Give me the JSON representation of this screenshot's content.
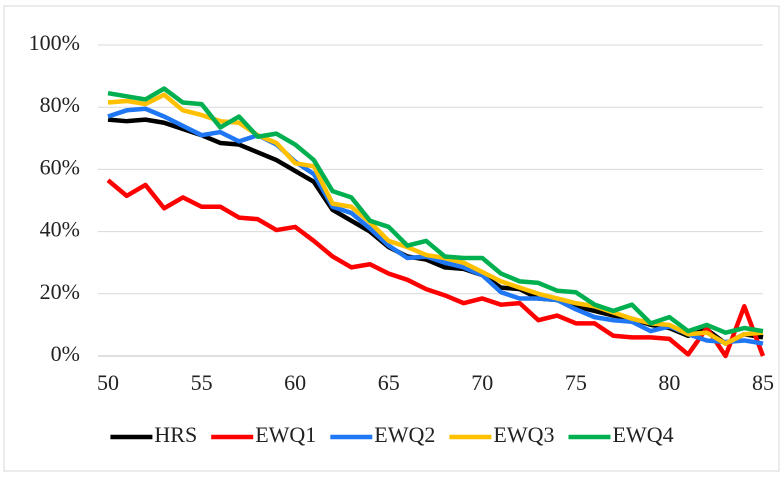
{
  "chart_data": {
    "type": "line",
    "x": [
      50,
      51,
      52,
      53,
      54,
      55,
      56,
      57,
      58,
      59,
      60,
      61,
      62,
      63,
      64,
      65,
      66,
      67,
      68,
      69,
      70,
      71,
      72,
      73,
      74,
      75,
      76,
      77,
      78,
      79,
      80,
      81,
      82,
      83,
      84,
      85
    ],
    "series": [
      {
        "name": "HRS",
        "color": "#000000",
        "values": [
          76,
          75.5,
          76,
          75,
          73,
          71,
          68.5,
          68,
          65.5,
          63,
          59.5,
          56,
          47,
          43.5,
          40,
          35,
          32,
          31,
          28.5,
          28,
          26,
          22,
          21.5,
          18.5,
          18,
          16,
          14.5,
          13,
          12,
          10,
          9,
          6.5,
          8.5,
          4,
          7,
          6
        ]
      },
      {
        "name": "EWQ1",
        "color": "#ff0000",
        "values": [
          56.5,
          51.5,
          55,
          47.5,
          51,
          48,
          48,
          44.5,
          44,
          40.5,
          41.5,
          37,
          32,
          28.5,
          29.5,
          26.5,
          24.5,
          21.5,
          19.5,
          17,
          18.5,
          16.5,
          17,
          11.5,
          13,
          10.5,
          10.5,
          6.5,
          6,
          6,
          5.5,
          0.5,
          9,
          0,
          16,
          0
        ]
      },
      {
        "name": "EWQ2",
        "color": "#1f77f4",
        "values": [
          77,
          79,
          79.5,
          77,
          74,
          71,
          72,
          69,
          71,
          68,
          62.5,
          58.5,
          48,
          46,
          41,
          35.5,
          31.5,
          32,
          30,
          28.5,
          26,
          20.5,
          18.5,
          18.5,
          18,
          15,
          12.5,
          11.5,
          11,
          8,
          9.5,
          7,
          5,
          4.5,
          5,
          4
        ]
      },
      {
        "name": "EWQ3",
        "color": "#ffc000",
        "values": [
          81.5,
          82,
          81,
          84,
          79,
          77.5,
          75.5,
          75,
          71,
          68.5,
          62,
          61,
          49,
          48,
          43,
          37,
          35,
          32.5,
          31.5,
          30,
          27,
          24,
          22,
          20,
          18.5,
          17,
          16,
          14,
          12,
          10.5,
          10,
          7,
          7.5,
          4,
          7,
          7.5
        ]
      },
      {
        "name": "EWQ4",
        "color": "#00b050",
        "values": [
          84.5,
          83.5,
          82.5,
          86,
          81.5,
          81,
          73.5,
          77,
          70.5,
          71.5,
          68,
          63,
          53,
          51,
          43.5,
          41.5,
          35.5,
          37,
          32,
          31.5,
          31.5,
          26.5,
          24,
          23.5,
          21,
          20.5,
          16.5,
          14.5,
          16.5,
          10.5,
          12.5,
          8,
          10,
          7.5,
          9,
          8
        ]
      }
    ],
    "xlim": [
      50,
      85
    ],
    "xticks": [
      50,
      55,
      60,
      65,
      70,
      75,
      80,
      85
    ],
    "ylim": [
      0,
      100
    ],
    "yticks": [
      {
        "value": 0,
        "label": "0%"
      },
      {
        "value": 20,
        "label": "20%"
      },
      {
        "value": 40,
        "label": "40%"
      },
      {
        "value": 60,
        "label": "60%"
      },
      {
        "value": 80,
        "label": "80%"
      },
      {
        "value": 100,
        "label": "100%"
      }
    ],
    "grid": true,
    "legend": "bottom"
  }
}
